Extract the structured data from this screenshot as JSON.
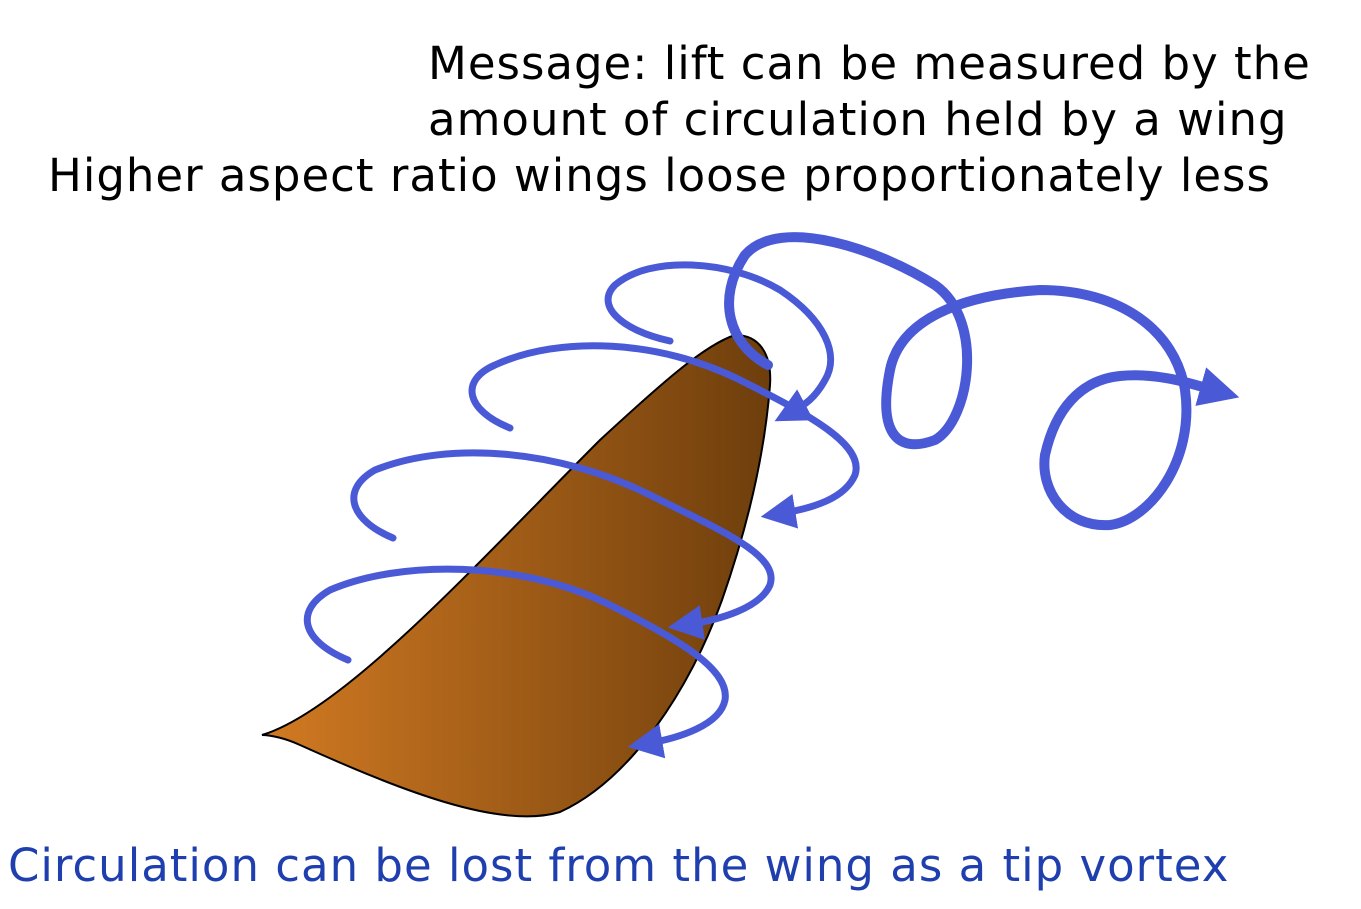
{
  "message": {
    "line1": "Message: lift can be measured by the",
    "line2": "amount of circulation held by a wing",
    "line3": "Higher aspect ratio wings loose proportionately less"
  },
  "caption": {
    "text": "Circulation can be lost from the wing as a tip vortex",
    "color": "#1f3fae"
  },
  "colors": {
    "wing_light": "#d27a22",
    "wing_dark": "#6e3e0c",
    "vortex": "#4a5ad6",
    "text": "#000000"
  }
}
